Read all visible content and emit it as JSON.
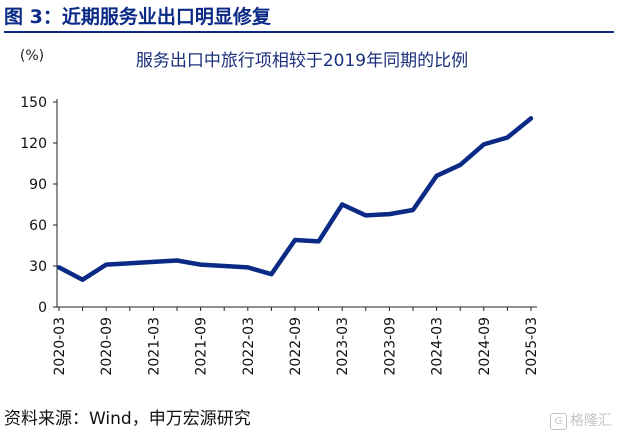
{
  "figure": {
    "title": "图 3：近期服务业出口明显修复",
    "source": "资料来源：Wind，申万宏源研究",
    "watermark": "格隆汇",
    "colors": {
      "title": "#0a2a86",
      "line": "#0a2a86",
      "axis": "#222222"
    }
  },
  "chart_data": {
    "type": "line",
    "title": "服务出口中旅行项相较于2019年同期的比例",
    "unit_label": "(%)",
    "xlabel": "",
    "ylabel": "",
    "ylim": [
      0,
      150
    ],
    "yticks": [
      0,
      30,
      60,
      90,
      120,
      150
    ],
    "grid": false,
    "legend": "none",
    "x": [
      "2020-03",
      "2020-06",
      "2020-09",
      "2020-12",
      "2021-03",
      "2021-06",
      "2021-09",
      "2021-12",
      "2022-03",
      "2022-06",
      "2022-09",
      "2022-12",
      "2023-03",
      "2023-06",
      "2023-09",
      "2023-12",
      "2024-03",
      "2024-06",
      "2024-09",
      "2024-12",
      "2025-03"
    ],
    "x_tick_labels": [
      "2020-03",
      "2020-09",
      "2021-03",
      "2021-09",
      "2022-03",
      "2022-09",
      "2023-03",
      "2023-09",
      "2024-03",
      "2024-09",
      "2025-03"
    ],
    "series": [
      {
        "name": "",
        "values": [
          29,
          20,
          31,
          32,
          33,
          34,
          31,
          30,
          29,
          24,
          49,
          48,
          75,
          67,
          68,
          71,
          96,
          104,
          119,
          124,
          138
        ]
      }
    ]
  }
}
